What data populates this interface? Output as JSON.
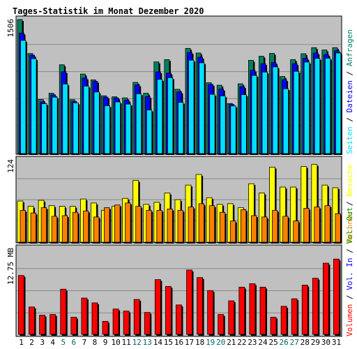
{
  "title": "Tages-Statistik im Monat Dezember 2020",
  "colors": {
    "title": "#0000cc",
    "panel_bg": "#c0c0c0",
    "grid": "#888888",
    "hits": "#008060",
    "files": "#0000ff",
    "pages": "#00e0ff",
    "visits": "#ffff00",
    "sites": "#ff8000",
    "kbytes": "#ff0000",
    "weekend": "#006666",
    "day_label": "#000080"
  },
  "legend": {
    "hits": "Anfragen",
    "files": "Dateien",
    "pages": "Seiten",
    "visits": "Besuche",
    "sites": "Rechner",
    "out": "Vol. Out",
    "in": "Vol. In",
    "volume": "Volumen"
  },
  "separator": "/",
  "chart_data": {
    "type": "bar",
    "categories": [
      "1",
      "2",
      "3",
      "4",
      "5",
      "6",
      "7",
      "8",
      "9",
      "10",
      "11",
      "12",
      "13",
      "14",
      "15",
      "16",
      "17",
      "18",
      "19",
      "20",
      "21",
      "22",
      "23",
      "24",
      "25",
      "26",
      "27",
      "28",
      "29",
      "30",
      "31"
    ],
    "weekend_days": [
      "5",
      "6",
      "12",
      "13",
      "19",
      "20",
      "26",
      "27"
    ],
    "panels": [
      {
        "name": "requests",
        "ymax_label": "1506",
        "ymax": 1506,
        "series": [
          {
            "name": "Anfragen",
            "values": [
              1506,
              1124,
              608,
              678,
              998,
              606,
              894,
              828,
              649,
              638,
              626,
              800,
              678,
              1030,
              1056,
              722,
              1182,
              1130,
              796,
              768,
              563,
              784,
              1048,
              1094,
              1126,
              866,
              1056,
              1122,
              1190,
              1164,
              1190
            ]
          },
          {
            "name": "Dateien",
            "values": [
              1354,
              1106,
              580,
              660,
              920,
              586,
              848,
              812,
              634,
              626,
              600,
              770,
              640,
              918,
              904,
              692,
              1136,
              1082,
              776,
              724,
              552,
              752,
              936,
              1010,
              1022,
              830,
              1010,
              1070,
              1130,
              1112,
              1156
            ]
          },
          {
            "name": "Seiten",
            "values": [
              1272,
              1066,
              560,
              634,
              782,
              570,
              758,
              692,
              538,
              580,
              556,
              672,
              490,
              834,
              852,
              576,
              1050,
              1020,
              666,
              648,
              535,
              662,
              878,
              916,
              974,
              728,
              924,
              1028,
              1070,
              1072,
              1130
            ]
          }
        ]
      },
      {
        "name": "visits",
        "ymax_label": "124",
        "ymax": 124,
        "series": [
          {
            "name": "Besuche",
            "values": [
              62,
              54,
              63,
              55,
              54,
              54,
              65,
              59,
              48,
              54,
              66,
              93,
              57,
              60,
              74,
              64,
              86,
              102,
              67,
              57,
              58,
              52,
              88,
              74,
              113,
              83,
              83,
              114,
              117,
              86,
              82
            ]
          },
          {
            "name": "Rechner",
            "values": [
              48,
              44,
              52,
              39,
              40,
              45,
              47,
              38,
              52,
              56,
              59,
              54,
              48,
              48,
              50,
              48,
              53,
              58,
              55,
              45,
              32,
              49,
              40,
              38,
              48,
              39,
              32,
              51,
              53,
              55,
              43
            ]
          }
        ]
      },
      {
        "name": "volume",
        "ymax_label": "12.75 MB",
        "ymax": 12.75,
        "series": [
          {
            "name": "Volumen",
            "values": [
              8.6,
              4.0,
              2.8,
              2.9,
              6.6,
              2.5,
              5.3,
              4.6,
              1.9,
              3.7,
              3.4,
              5.1,
              3.2,
              8.0,
              7.0,
              4.3,
              9.4,
              8.3,
              6.4,
              2.9,
              4.9,
              6.9,
              7.4,
              6.9,
              2.5,
              4.1,
              5.2,
              7.2,
              8.2,
              10.4,
              11.0
            ]
          }
        ]
      }
    ]
  }
}
